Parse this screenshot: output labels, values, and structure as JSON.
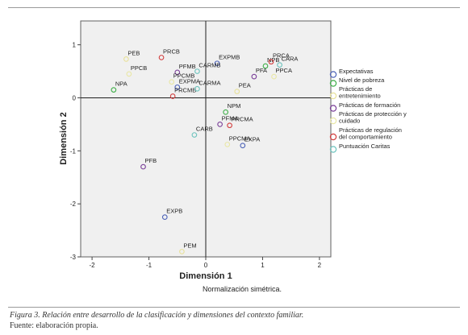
{
  "chart_data": {
    "type": "scatter",
    "xlabel": "Dimensión 1",
    "ylabel": "Dimensión 2",
    "subtitle": "Normalización simétrica.",
    "xlim": [
      -2.2,
      2.2
    ],
    "ylim": [
      -3,
      1.45
    ],
    "xticks": [
      -2,
      -1,
      0,
      1,
      2
    ],
    "yticks": [
      -3,
      -2,
      -1,
      0,
      1
    ],
    "legend_position": "right",
    "series": [
      {
        "name": "Expectativas",
        "color": "#4d63b8",
        "points": [
          {
            "label": "EXPMB",
            "x": 0.2,
            "y": 0.65
          },
          {
            "label": "EXPMA",
            "x": -0.5,
            "y": 0.2
          },
          {
            "label": "EXPA",
            "x": 0.65,
            "y": -0.9
          },
          {
            "label": "EXPB",
            "x": -0.72,
            "y": -2.25
          }
        ]
      },
      {
        "name": "Nivel de pobreza",
        "color": "#3fae49",
        "points": [
          {
            "label": "NPB",
            "x": 1.05,
            "y": 0.6
          },
          {
            "label": "NPA",
            "x": -1.62,
            "y": 0.15
          },
          {
            "label": "NPM",
            "x": 0.35,
            "y": -0.27
          }
        ]
      },
      {
        "name": "Prácticas de entretenimiento",
        "color": "#e8e19a",
        "points": [
          {
            "label": "PEB",
            "x": -1.4,
            "y": 0.73
          },
          {
            "label": "PEA",
            "x": 0.55,
            "y": 0.12
          },
          {
            "label": "PEM",
            "x": -0.42,
            "y": -2.9
          }
        ]
      },
      {
        "name": "Prácticas de formación",
        "color": "#7a3f98",
        "points": [
          {
            "label": "PFMB",
            "x": -0.5,
            "y": 0.48
          },
          {
            "label": "PFA",
            "x": 0.85,
            "y": 0.4
          },
          {
            "label": "PFMA",
            "x": 0.25,
            "y": -0.5
          },
          {
            "label": "PFB",
            "x": -1.1,
            "y": -1.3
          }
        ]
      },
      {
        "name": "Prácticas de protección y cuidado",
        "color": "#e9e7a6",
        "points": [
          {
            "label": "PPCB",
            "x": -1.35,
            "y": 0.45
          },
          {
            "label": "PPCMB",
            "x": -0.6,
            "y": 0.3
          },
          {
            "label": "PPCA",
            "x": 1.2,
            "y": 0.4
          },
          {
            "label": "PPCMA",
            "x": 0.38,
            "y": -0.88
          }
        ]
      },
      {
        "name": "Prácticas de regulación del comportamiento",
        "color": "#d23d3d",
        "points": [
          {
            "label": "PRCB",
            "x": -0.78,
            "y": 0.76
          },
          {
            "label": "PRCA",
            "x": 1.15,
            "y": 0.68
          },
          {
            "label": "PRCMB",
            "x": -0.58,
            "y": 0.03
          },
          {
            "label": "PRCMA",
            "x": 0.42,
            "y": -0.52
          }
        ]
      },
      {
        "name": "Puntuación Caritas",
        "color": "#6cc3bd",
        "points": [
          {
            "label": "CARA",
            "x": 1.3,
            "y": 0.62
          },
          {
            "label": "CARMB",
            "x": -0.15,
            "y": 0.5
          },
          {
            "label": "CARMA",
            "x": -0.15,
            "y": 0.17
          },
          {
            "label": "CARB",
            "x": -0.2,
            "y": -0.7
          }
        ]
      }
    ]
  },
  "caption": {
    "figure_label": "Figura 3.",
    "figure_text": "Relación entre desarrollo de la clasificación y dimensiones del contexto familiar.",
    "source": "Fuente: elaboración propia."
  }
}
